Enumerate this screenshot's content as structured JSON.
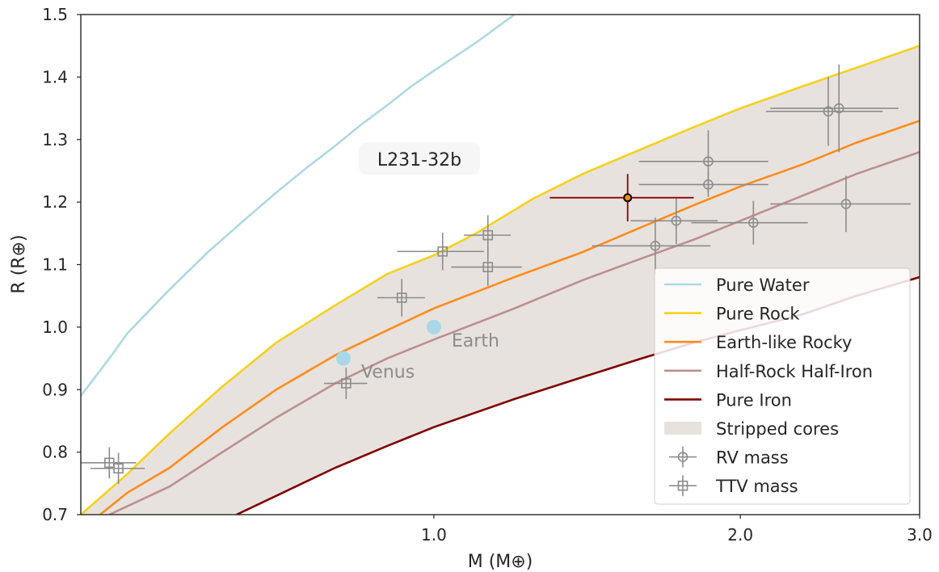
{
  "chart_data": {
    "type": "scatter",
    "xlabel": "M (M⊕)",
    "ylabel": "R (R⊕)",
    "xscale": "log",
    "xlim": [
      0.45,
      3.0
    ],
    "ylim": [
      0.7,
      1.5
    ],
    "xticks": [
      {
        "v": 1.0,
        "label": "1.0"
      },
      {
        "v": 2.0,
        "label": "2.0"
      },
      {
        "v": 3.0,
        "label": "3.0"
      }
    ],
    "yticks": [
      {
        "v": 0.7,
        "label": "0.7"
      },
      {
        "v": 0.8,
        "label": "0.8"
      },
      {
        "v": 0.9,
        "label": "0.9"
      },
      {
        "v": 1.0,
        "label": "1.0"
      },
      {
        "v": 1.1,
        "label": "1.1"
      },
      {
        "v": 1.2,
        "label": "1.2"
      },
      {
        "v": 1.3,
        "label": "1.3"
      },
      {
        "v": 1.4,
        "label": "1.4"
      },
      {
        "v": 1.5,
        "label": "1.5"
      }
    ],
    "grid": false,
    "legend_position": "lower-right",
    "colors": {
      "water": "#add8e6",
      "rock": "#f5d21a",
      "earthlike": "#ff8c1a",
      "halfiron": "#bc8f8f",
      "iron": "#800000",
      "stripped": "#e8e2de",
      "measurements": "#8c8c8c",
      "highlight": "#8b0000",
      "highlight_fill": "#ff8c00",
      "solar": "#a8d8e8"
    },
    "curves": [
      {
        "name": "Pure Water",
        "color": "#add8e6",
        "points": [
          [
            0.45,
            0.89
          ],
          [
            0.48,
            0.95
          ],
          [
            0.5,
            0.99
          ],
          [
            0.55,
            1.06
          ],
          [
            0.6,
            1.12
          ],
          [
            0.65,
            1.17
          ],
          [
            0.7,
            1.215
          ],
          [
            0.75,
            1.255
          ],
          [
            0.8,
            1.29
          ],
          [
            0.85,
            1.325
          ],
          [
            0.9,
            1.355
          ],
          [
            0.95,
            1.385
          ],
          [
            1.0,
            1.41
          ],
          [
            1.1,
            1.455
          ],
          [
            1.2,
            1.5
          ]
        ]
      },
      {
        "name": "Pure Rock",
        "color": "#f5d21a",
        "points": [
          [
            0.45,
            0.7
          ],
          [
            0.5,
            0.765
          ],
          [
            0.55,
            0.83
          ],
          [
            0.62,
            0.905
          ],
          [
            0.7,
            0.975
          ],
          [
            0.8,
            1.035
          ],
          [
            0.9,
            1.085
          ],
          [
            1.0,
            1.115
          ],
          [
            1.1,
            1.15
          ],
          [
            1.25,
            1.205
          ],
          [
            1.4,
            1.245
          ],
          [
            1.6,
            1.285
          ],
          [
            1.8,
            1.32
          ],
          [
            2.0,
            1.35
          ],
          [
            2.3,
            1.385
          ],
          [
            2.6,
            1.415
          ],
          [
            3.0,
            1.45
          ]
        ]
      },
      {
        "name": "Earth-like Rocky",
        "color": "#ff8c1a",
        "points": [
          [
            0.47,
            0.7
          ],
          [
            0.5,
            0.735
          ],
          [
            0.55,
            0.775
          ],
          [
            0.62,
            0.84
          ],
          [
            0.7,
            0.9
          ],
          [
            0.8,
            0.955
          ],
          [
            0.9,
            0.995
          ],
          [
            1.0,
            1.03
          ],
          [
            1.2,
            1.08
          ],
          [
            1.4,
            1.12
          ],
          [
            1.6,
            1.16
          ],
          [
            1.8,
            1.195
          ],
          [
            2.0,
            1.225
          ],
          [
            2.3,
            1.26
          ],
          [
            2.6,
            1.295
          ],
          [
            3.0,
            1.33
          ]
        ]
      },
      {
        "name": "Half-Rock Half-Iron",
        "color": "#bc8f8f",
        "points": [
          [
            0.48,
            0.7
          ],
          [
            0.55,
            0.745
          ],
          [
            0.62,
            0.8
          ],
          [
            0.7,
            0.855
          ],
          [
            0.8,
            0.91
          ],
          [
            0.9,
            0.95
          ],
          [
            1.0,
            0.98
          ],
          [
            1.2,
            1.03
          ],
          [
            1.4,
            1.075
          ],
          [
            1.6,
            1.11
          ],
          [
            1.8,
            1.14
          ],
          [
            2.0,
            1.17
          ],
          [
            2.3,
            1.21
          ],
          [
            2.6,
            1.245
          ],
          [
            3.0,
            1.28
          ]
        ]
      },
      {
        "name": "Pure Iron",
        "color": "#800000",
        "points": [
          [
            0.64,
            0.7
          ],
          [
            0.7,
            0.73
          ],
          [
            0.8,
            0.775
          ],
          [
            0.9,
            0.81
          ],
          [
            1.0,
            0.84
          ],
          [
            1.2,
            0.885
          ],
          [
            1.4,
            0.92
          ],
          [
            1.6,
            0.95
          ],
          [
            1.8,
            0.975
          ],
          [
            2.0,
            0.995
          ],
          [
            2.3,
            1.02
          ],
          [
            2.6,
            1.05
          ],
          [
            3.0,
            1.08
          ]
        ]
      }
    ],
    "stripped_cores_label": "Stripped cores",
    "rv_points": [
      {
        "x": 1.86,
        "y": 1.265,
        "xerr": 0.27,
        "yerr": 0.05
      },
      {
        "x": 1.86,
        "y": 1.228,
        "xerr": 0.27,
        "yerr": 0.02
      },
      {
        "x": 1.73,
        "y": 1.17,
        "xerr": 0.17,
        "yerr": 0.037
      },
      {
        "x": 2.06,
        "y": 1.167,
        "xerr": 0.27,
        "yerr": 0.035
      },
      {
        "x": 1.65,
        "y": 1.13,
        "xerr": 0.22,
        "yerr": 0.045
      },
      {
        "x": 2.44,
        "y": 1.345,
        "xerr": 0.32,
        "yerr": 0.055
      },
      {
        "x": 2.5,
        "y": 1.35,
        "xerr": 0.36,
        "yerr": 0.07
      },
      {
        "x": 2.54,
        "y": 1.197,
        "xerr": 0.4,
        "yerr": 0.045
      }
    ],
    "ttv_points": [
      {
        "x": 0.48,
        "y": 0.783,
        "xerr": 0.03,
        "yerr": 0.025
      },
      {
        "x": 0.49,
        "y": 0.774,
        "xerr": 0.03,
        "yerr": 0.025
      },
      {
        "x": 0.82,
        "y": 0.91,
        "xerr": 0.04,
        "yerr": 0.025
      },
      {
        "x": 0.93,
        "y": 1.047,
        "xerr": 0.05,
        "yerr": 0.03
      },
      {
        "x": 1.02,
        "y": 1.121,
        "xerr": 0.1,
        "yerr": 0.03
      },
      {
        "x": 1.13,
        "y": 1.147,
        "xerr": 0.06,
        "yerr": 0.032
      },
      {
        "x": 1.13,
        "y": 1.096,
        "xerr": 0.09,
        "yerr": 0.03
      }
    ],
    "highlight": {
      "label": "L231-32b",
      "x": 1.55,
      "y": 1.207,
      "xerr": 0.25,
      "yerr": 0.038
    },
    "solar_planets": [
      {
        "name": "Earth",
        "x": 1.0,
        "y": 1.0
      },
      {
        "name": "Venus",
        "x": 0.815,
        "y": 0.95
      }
    ],
    "legend": [
      {
        "label": "Pure Water",
        "kind": "line",
        "color": "#add8e6"
      },
      {
        "label": "Pure Rock",
        "kind": "line",
        "color": "#f5d21a"
      },
      {
        "label": "Earth-like Rocky",
        "kind": "line",
        "color": "#ff8c1a"
      },
      {
        "label": "Half-Rock Half-Iron",
        "kind": "line",
        "color": "#bc8f8f"
      },
      {
        "label": "Pure Iron",
        "kind": "line",
        "color": "#800000"
      },
      {
        "label": "Stripped cores",
        "kind": "patch",
        "color": "#e8e2de"
      },
      {
        "label": "RV mass",
        "kind": "circle-err",
        "color": "#8c8c8c"
      },
      {
        "label": "TTV mass",
        "kind": "square-err",
        "color": "#8c8c8c"
      }
    ]
  }
}
